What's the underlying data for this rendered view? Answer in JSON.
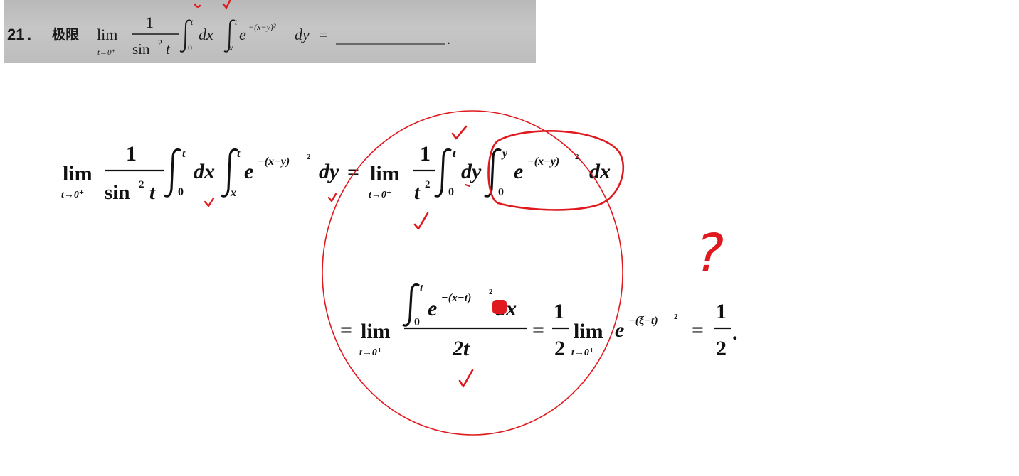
{
  "question": {
    "number": "21",
    "punct": ".",
    "title": "极限",
    "lim": "lim",
    "lim_sub": "t→0⁺",
    "frac_num": "1",
    "frac_den": "sin",
    "frac_den_pow": "2",
    "frac_den_var": "t",
    "int1_upper": "t",
    "int1_lower": "0",
    "int1_body": "dx",
    "int2_upper": "t",
    "int2_lower": "x",
    "exp_base": "e",
    "exp_power": "−(x−y)²",
    "int2_diff": "dy",
    "equals": "=",
    "end": "."
  },
  "solution": {
    "line1": {
      "lim": "lim",
      "lim_sub": "t→0⁺",
      "frac_num": "1",
      "frac_den": "sin",
      "frac_den_pow": "2",
      "frac_den_var": "t",
      "int1_upper": "t",
      "int1_lower": "0",
      "int1_body": "dx",
      "int2_upper": "t",
      "int2_lower": "x",
      "exp_base": "e",
      "exp_power": "−(x−y)",
      "exp_power_sq": "2",
      "int2_diff": "dy",
      "equals": "=",
      "rhs_lim": "lim",
      "rhs_lim_sub": "t→0⁺",
      "rhs_frac_num": "1",
      "rhs_frac_den": "t",
      "rhs_frac_den_pow": "2",
      "rhs_int1_upper": "t",
      "rhs_int1_lower": "0",
      "rhs_int1_body": "dy",
      "rhs_int2_upper": "y",
      "rhs_int2_lower": "0",
      "rhs_exp_base": "e",
      "rhs_exp_power": "−(x−y)",
      "rhs_exp_power_sq": "2",
      "rhs_int2_diff": "dx"
    },
    "line2": {
      "equals1": "=",
      "lim": "lim",
      "lim_sub": "t→0⁺",
      "num_int_upper": "t",
      "num_int_lower": "0",
      "num_exp_base": "e",
      "num_exp_power": "−(x−t)",
      "num_exp_power_sq": "2",
      "num_diff": "dx",
      "den": "2t",
      "equals2": "=",
      "half_num": "1",
      "half_den": "2",
      "lim2": "lim",
      "lim2_sub": "t→0⁺",
      "exp_base": "e",
      "exp_power": "−(ξ−t)",
      "exp_power_sq": "2",
      "equals3": "=",
      "result_num": "1",
      "result_den": "2",
      "end": "."
    }
  },
  "annotations": {
    "question_mark": "?",
    "ink_color": "#e0191e"
  }
}
